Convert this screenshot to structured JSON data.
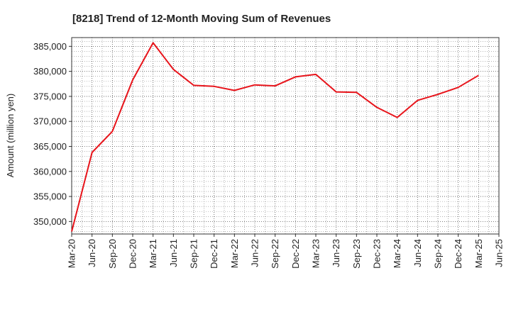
{
  "chart_data": {
    "type": "line",
    "title": "[8218]  Trend of 12-Month Moving Sum of Revenues",
    "ylabel": "Amount (million yen)",
    "xlabel": "",
    "ylim": [
      347500,
      386750
    ],
    "grid": true,
    "legend": "none",
    "x_ticks": [
      "Mar-20",
      "Jun-20",
      "Sep-20",
      "Dec-20",
      "Mar-21",
      "Jun-21",
      "Sep-21",
      "Dec-21",
      "Mar-22",
      "Jun-22",
      "Sep-22",
      "Dec-22",
      "Mar-23",
      "Jun-23",
      "Sep-23",
      "Dec-23",
      "Mar-24",
      "Jun-24",
      "Sep-24",
      "Dec-24",
      "Mar-25",
      "Jun-25"
    ],
    "y_ticks": [
      350000,
      355000,
      360000,
      365000,
      370000,
      375000,
      380000,
      385000
    ],
    "y_tick_labels": [
      "350,000",
      "355,000",
      "360,000",
      "365,000",
      "370,000",
      "375,000",
      "380,000",
      "385,000"
    ],
    "series": [
      {
        "color": "#e8141b",
        "x": [
          "Mar-20",
          "Jun-20",
          "Sep-20",
          "Dec-20",
          "Mar-21",
          "Jun-21",
          "Sep-21",
          "Dec-21",
          "Mar-22",
          "Jun-22",
          "Sep-22",
          "Dec-22",
          "Mar-23",
          "Jun-23",
          "Sep-23",
          "Dec-23",
          "Mar-24",
          "Jun-24",
          "Sep-24",
          "Dec-24",
          "Mar-25"
        ],
        "values": [
          348000,
          363800,
          368000,
          378300,
          385700,
          380400,
          377200,
          377000,
          376200,
          377300,
          377100,
          378900,
          379400,
          375900,
          375800,
          372800,
          370800,
          374200,
          375400,
          376800,
          379200
        ]
      }
    ]
  }
}
